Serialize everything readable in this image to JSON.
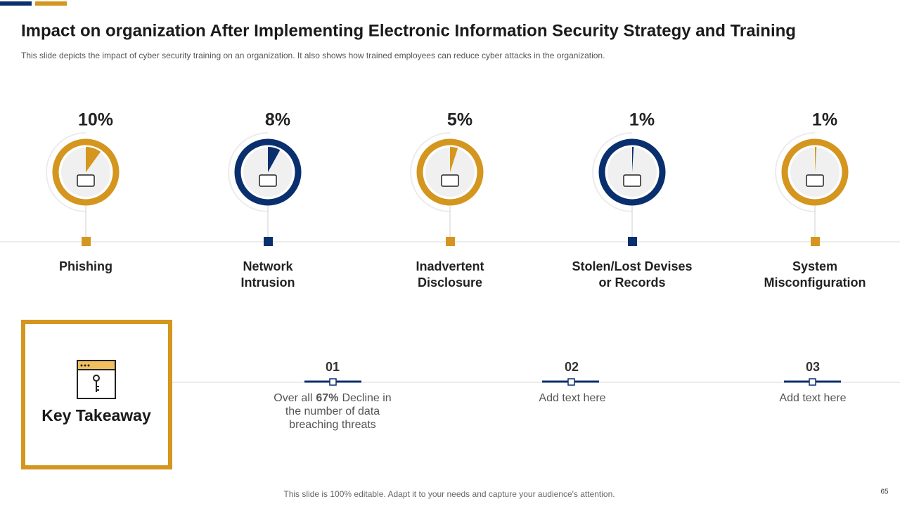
{
  "header": {
    "title": "Impact on organization After Implementing Electronic Information Security Strategy and Training",
    "subtitle": "This slide depicts the impact of cyber security training on an organization. It also shows how trained employees can reduce cyber attacks in the organization."
  },
  "metrics": {
    "labels": [
      [
        "Phishing"
      ],
      [
        "Network",
        "Intrusion"
      ],
      [
        "Inadvertent",
        "Disclosure"
      ],
      [
        "Stolen/Lost Devises",
        "or Records"
      ],
      [
        "System",
        "Misconfiguration"
      ]
    ],
    "values": [
      10,
      8,
      5,
      1,
      1
    ],
    "value_labels": [
      "10%",
      "8%",
      "5%",
      "1%",
      "1%"
    ],
    "colors": [
      "#D4961E",
      "#0A2F6E",
      "#D4961E",
      "#0A2F6E",
      "#D4961E"
    ]
  },
  "key_takeaway": {
    "title": "Key Takeaway"
  },
  "takeaways": [
    {
      "number": "01",
      "text": [
        "Over all",
        "67%",
        "Decline in",
        "the number of data",
        "breaching threats"
      ]
    },
    {
      "number": "02",
      "text": [
        "Add text here"
      ]
    },
    {
      "number": "03",
      "text": [
        "Add text here"
      ]
    }
  ],
  "footer": {
    "note": "This slide is 100% editable. Adapt it to your needs and capture your audience's attention.",
    "page": "65"
  }
}
